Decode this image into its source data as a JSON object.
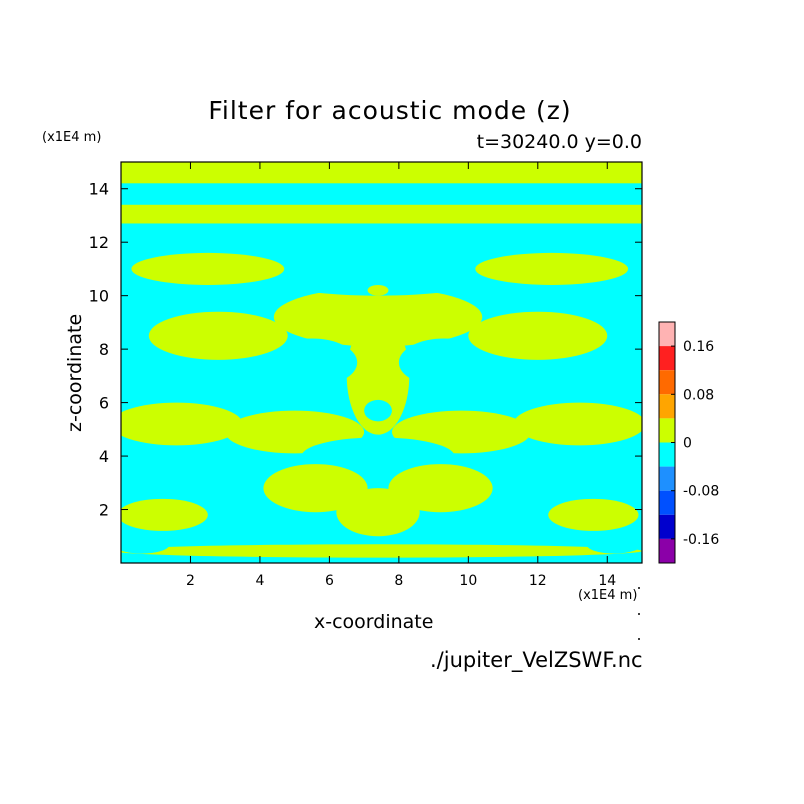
{
  "chart_data": {
    "type": "heatmap",
    "title": "Filter for acoustic mode (z)",
    "subtitle": "t=30240.0 y=0.0",
    "xlabel": "x-coordinate",
    "ylabel": "z-coordinate",
    "x_unit": "(x1E4 m)",
    "y_unit": "(x1E4 m)",
    "xlim": [
      0,
      15
    ],
    "ylim": [
      0,
      15
    ],
    "x_ticks": [
      2,
      4,
      6,
      8,
      10,
      12,
      14
    ],
    "y_ticks": [
      2,
      4,
      6,
      8,
      10,
      12,
      14
    ],
    "colorbar": {
      "levels": [
        {
          "from": 0.16,
          "to": 0.2,
          "color": "#ffb3b3"
        },
        {
          "from": 0.12,
          "to": 0.16,
          "color": "#ff2020"
        },
        {
          "from": 0.08,
          "to": 0.12,
          "color": "#ff6a00"
        },
        {
          "from": 0.04,
          "to": 0.08,
          "color": "#ffa500"
        },
        {
          "from": 0,
          "to": 0.04,
          "color": "#ccff00"
        },
        {
          "from": -0.04,
          "to": 0,
          "color": "#00ffff"
        },
        {
          "from": -0.08,
          "to": -0.04,
          "color": "#1e90ff"
        },
        {
          "from": -0.12,
          "to": -0.08,
          "color": "#0050ff"
        },
        {
          "from": -0.16,
          "to": -0.12,
          "color": "#0000cd"
        },
        {
          "from": -0.2,
          "to": -0.16,
          "color": "#8b00a8"
        }
      ],
      "tick_labels": [
        "0.16",
        "0.08",
        "0",
        "-0.08",
        "-0.16"
      ],
      "tick_values": [
        0.16,
        0.08,
        0,
        -0.08,
        -0.16
      ]
    },
    "bands": [
      {
        "z": [
          14.2,
          15.0
        ],
        "value": 0.02
      },
      {
        "z": [
          13.4,
          14.2
        ],
        "value": -0.02
      },
      {
        "z": [
          12.7,
          13.4
        ],
        "value": 0.02
      },
      {
        "z": [
          11.9,
          12.7
        ],
        "value": -0.02
      }
    ],
    "blobs": [
      {
        "x": 7.4,
        "z": 9.2,
        "rx": 3.0,
        "rz": 1.1,
        "value": 0.02
      },
      {
        "x": 7.4,
        "z": 7.0,
        "rx": 0.9,
        "rz": 2.2,
        "value": 0.02
      },
      {
        "x": 5.5,
        "z": 7.5,
        "rx": 1.3,
        "rz": 0.9,
        "value": -0.02
      },
      {
        "x": 9.3,
        "z": 7.5,
        "rx": 1.3,
        "rz": 0.9,
        "value": -0.02
      },
      {
        "x": 7.4,
        "z": 10.5,
        "rx": 2.8,
        "rz": 0.5,
        "value": -0.02
      },
      {
        "x": 7.4,
        "z": 10.2,
        "rx": 0.3,
        "rz": 0.2,
        "value": 0.02
      },
      {
        "x": 7.4,
        "z": 5.7,
        "rx": 0.4,
        "rz": 0.4,
        "value": -0.02
      },
      {
        "x": 2.5,
        "z": 11.0,
        "rx": 2.2,
        "rz": 0.6,
        "value": 0.02
      },
      {
        "x": 12.4,
        "z": 11.0,
        "rx": 2.2,
        "rz": 0.6,
        "value": 0.02
      },
      {
        "x": 1.2,
        "z": 9.7,
        "rx": 1.4,
        "rz": 0.5,
        "value": -0.02
      },
      {
        "x": 13.6,
        "z": 9.7,
        "rx": 1.4,
        "rz": 0.5,
        "value": -0.02
      },
      {
        "x": 2.8,
        "z": 8.5,
        "rx": 2.0,
        "rz": 0.9,
        "value": 0.02
      },
      {
        "x": 12.0,
        "z": 8.5,
        "rx": 2.0,
        "rz": 0.9,
        "value": 0.02
      },
      {
        "x": 1.0,
        "z": 7.2,
        "rx": 1.2,
        "rz": 0.6,
        "value": -0.02
      },
      {
        "x": 13.8,
        "z": 7.2,
        "rx": 1.2,
        "rz": 0.6,
        "value": -0.02
      },
      {
        "x": 3.4,
        "z": 6.3,
        "rx": 1.6,
        "rz": 0.7,
        "value": -0.02
      },
      {
        "x": 11.4,
        "z": 6.3,
        "rx": 1.6,
        "rz": 0.7,
        "value": -0.02
      },
      {
        "x": 1.6,
        "z": 5.2,
        "rx": 1.9,
        "rz": 0.8,
        "value": 0.02
      },
      {
        "x": 13.2,
        "z": 5.2,
        "rx": 1.9,
        "rz": 0.8,
        "value": 0.02
      },
      {
        "x": 5.0,
        "z": 4.9,
        "rx": 2.0,
        "rz": 0.8,
        "value": 0.02
      },
      {
        "x": 9.8,
        "z": 4.9,
        "rx": 2.0,
        "rz": 0.8,
        "value": 0.02
      },
      {
        "x": 7.4,
        "z": 4.0,
        "rx": 2.2,
        "rz": 0.7,
        "value": -0.02
      },
      {
        "x": 2.6,
        "z": 3.5,
        "rx": 2.0,
        "rz": 0.7,
        "value": -0.02
      },
      {
        "x": 12.2,
        "z": 3.5,
        "rx": 2.0,
        "rz": 0.7,
        "value": -0.02
      },
      {
        "x": 5.6,
        "z": 2.8,
        "rx": 1.5,
        "rz": 0.9,
        "value": 0.02
      },
      {
        "x": 9.2,
        "z": 2.8,
        "rx": 1.5,
        "rz": 0.9,
        "value": 0.02
      },
      {
        "x": 7.4,
        "z": 1.9,
        "rx": 1.2,
        "rz": 0.9,
        "value": 0.02
      },
      {
        "x": 1.2,
        "z": 1.8,
        "rx": 1.3,
        "rz": 0.6,
        "value": 0.02
      },
      {
        "x": 13.6,
        "z": 1.8,
        "rx": 1.3,
        "rz": 0.6,
        "value": 0.02
      },
      {
        "x": 4.0,
        "z": 1.3,
        "rx": 1.4,
        "rz": 0.5,
        "value": -0.02
      },
      {
        "x": 10.8,
        "z": 1.3,
        "rx": 1.4,
        "rz": 0.5,
        "value": -0.02
      },
      {
        "x": 7.4,
        "z": 0.45,
        "rx": 7.6,
        "rz": 0.25,
        "value": 0.02
      },
      {
        "x": 0.6,
        "z": 0.7,
        "rx": 0.8,
        "rz": 0.35,
        "value": -0.02
      },
      {
        "x": 14.2,
        "z": 0.7,
        "rx": 0.8,
        "rz": 0.35,
        "value": -0.02
      }
    ],
    "background_value": -0.02
  },
  "source_file": "./jupiter_VelZSWF.nc"
}
